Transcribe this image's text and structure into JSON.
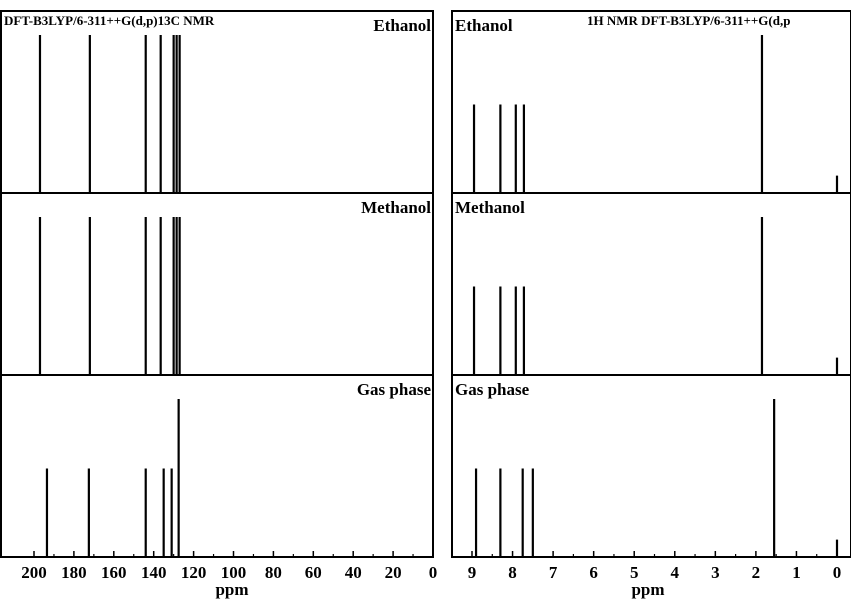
{
  "chart_data": [
    {
      "type": "bar",
      "title": "DFT-B3LYP/6-311++G(d,p)13C NMR",
      "nucleus": "13C",
      "xlabel": "ppm",
      "xlim": [
        200,
        0
      ],
      "xticks": [
        200,
        180,
        160,
        140,
        120,
        100,
        80,
        60,
        40,
        20,
        0
      ],
      "panels": [
        {
          "label": "Ethanol",
          "peaks": [
            {
              "x": 197.0,
              "y": 1
            },
            {
              "x": 172.0,
              "y": 1
            },
            {
              "x": 144.0,
              "y": 1
            },
            {
              "x": 136.5,
              "y": 1
            },
            {
              "x": 130.0,
              "y": 1
            },
            {
              "x": 128.5,
              "y": 1
            },
            {
              "x": 127.0,
              "y": 1
            }
          ]
        },
        {
          "label": "Methanol",
          "peaks": [
            {
              "x": 197.0,
              "y": 1
            },
            {
              "x": 172.0,
              "y": 1
            },
            {
              "x": 144.0,
              "y": 1
            },
            {
              "x": 136.5,
              "y": 1
            },
            {
              "x": 130.0,
              "y": 1
            },
            {
              "x": 128.5,
              "y": 1
            },
            {
              "x": 127.0,
              "y": 1
            }
          ]
        },
        {
          "label": "Gas phase",
          "peaks": [
            {
              "x": 193.5,
              "y": 0.56
            },
            {
              "x": 172.5,
              "y": 0.56
            },
            {
              "x": 144.0,
              "y": 0.56
            },
            {
              "x": 135.0,
              "y": 0.56
            },
            {
              "x": 131.0,
              "y": 0.56
            },
            {
              "x": 127.5,
              "y": 1
            }
          ]
        }
      ]
    },
    {
      "type": "bar",
      "title": "1H NMR   DFT-B3LYP/6-311++G(d,p",
      "nucleus": "1H",
      "xlabel": "ppm",
      "xlim": [
        9.5,
        -0.5
      ],
      "xticks": [
        9,
        8,
        7,
        6,
        5,
        4,
        3,
        2,
        1,
        0
      ],
      "panels": [
        {
          "label": "Ethanol",
          "peaks": [
            {
              "x": 8.95,
              "y": 0.56
            },
            {
              "x": 8.3,
              "y": 0.56
            },
            {
              "x": 7.92,
              "y": 0.56
            },
            {
              "x": 7.72,
              "y": 0.56
            },
            {
              "x": 1.85,
              "y": 1
            },
            {
              "x": 0.0,
              "y": 0.11
            }
          ]
        },
        {
          "label": "Methanol",
          "peaks": [
            {
              "x": 8.95,
              "y": 0.56
            },
            {
              "x": 8.3,
              "y": 0.56
            },
            {
              "x": 7.92,
              "y": 0.56
            },
            {
              "x": 7.72,
              "y": 0.56
            },
            {
              "x": 1.85,
              "y": 1
            },
            {
              "x": 0.0,
              "y": 0.11
            }
          ]
        },
        {
          "label": "Gas phase",
          "peaks": [
            {
              "x": 8.9,
              "y": 0.56
            },
            {
              "x": 8.3,
              "y": 0.56
            },
            {
              "x": 7.75,
              "y": 0.56
            },
            {
              "x": 7.5,
              "y": 0.56
            },
            {
              "x": 1.55,
              "y": 1
            },
            {
              "x": 0.0,
              "y": 0.11
            }
          ]
        }
      ]
    }
  ]
}
